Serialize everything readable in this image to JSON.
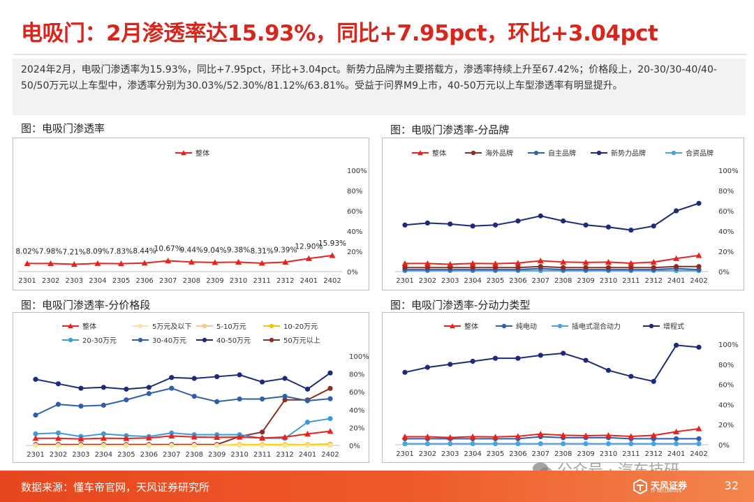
{
  "page": {
    "title": "电吸门：2月渗透率达15.93%，同比+7.95pct，环比+3.04pct",
    "summary": "2024年2月，电吸门渗透率为15.93%，同比+7.95pct，环比+3.04pct。新势力品牌为主要搭载方，渗透率持续上升至67.42%；价格段上，20-30/30-40/40-50/50万元以上车型中，渗透率分别为30.03%/52.30%/81.12%/63.81%。受益于问界M9上市，40-50万元以上车型渗透率有明显提升。",
    "source": "数据来源：懂车帝官网，天风证券研究所",
    "page_number": "32",
    "watermark": "公众号 · 汽车技研",
    "logo_text": "天风证券",
    "logo_sub": "TF SECURITIES"
  },
  "chart_titles": [
    "图：电吸门渗透率",
    "图：电吸门渗透率-分品牌",
    "图：电吸门渗透率-分价格段",
    "图：电吸门渗透率-分动力类型"
  ],
  "chart_data": [
    {
      "type": "line",
      "x": [
        "2301",
        "2302",
        "2303",
        "2304",
        "2305",
        "2306",
        "2307",
        "2308",
        "2309",
        "2310",
        "2311",
        "2312",
        "2401",
        "2402"
      ],
      "ylim": [
        0,
        100
      ],
      "yticks": [
        "0%",
        "20%",
        "40%",
        "60%",
        "80%",
        "100%"
      ],
      "legend_position": "top",
      "series": [
        {
          "name": "整体",
          "color": "#e8231d",
          "marker": "triangle",
          "values": [
            8.02,
            7.98,
            7.21,
            8.09,
            7.83,
            8.44,
            10.67,
            9.44,
            9.04,
            9.38,
            8.31,
            9.39,
            12.9,
            15.93
          ],
          "labels": [
            "8.02%",
            "7.98%",
            "7.21%",
            "8.09%",
            "7.83%",
            "8.44%",
            "10.67%",
            "9.44%",
            "9.04%",
            "9.38%",
            "8.31%",
            "9.39%",
            "12.90%",
            "15.93%"
          ]
        }
      ]
    },
    {
      "type": "line",
      "x": [
        "2301",
        "2302",
        "2303",
        "2304",
        "2305",
        "2306",
        "2307",
        "2308",
        "2309",
        "2310",
        "2311",
        "2312",
        "2401",
        "2402"
      ],
      "ylim": [
        0,
        100
      ],
      "yticks": [
        "0%",
        "20%",
        "40%",
        "60%",
        "80%",
        "100%"
      ],
      "legend_position": "top",
      "series": [
        {
          "name": "整体",
          "color": "#e8231d",
          "marker": "triangle",
          "values": [
            8.02,
            7.98,
            7.21,
            8.09,
            7.83,
            8.44,
            10.67,
            9.44,
            9.04,
            9.38,
            8.31,
            9.39,
            12.9,
            15.93
          ]
        },
        {
          "name": "海外品牌",
          "color": "#8b2e24",
          "marker": "circle",
          "values": [
            4,
            4,
            4,
            4,
            4,
            4,
            5,
            4,
            4,
            4,
            4,
            4,
            5,
            5
          ]
        },
        {
          "name": "自主品牌",
          "color": "#2f66b0",
          "marker": "circle",
          "values": [
            2,
            2,
            2,
            2,
            2,
            2,
            3,
            2,
            2,
            2,
            2,
            2,
            3,
            2
          ]
        },
        {
          "name": "新势力品牌",
          "color": "#1b2a7a",
          "marker": "circle",
          "values": [
            46,
            48,
            47,
            45,
            46,
            50,
            55,
            50,
            46,
            44,
            41,
            45,
            60,
            67.42
          ]
        },
        {
          "name": "合资品牌",
          "color": "#4ba3dd",
          "marker": "circle",
          "values": [
            1,
            1,
            1,
            1,
            1,
            1,
            1,
            1,
            1,
            1,
            1,
            1,
            1,
            1
          ]
        }
      ]
    },
    {
      "type": "line",
      "x": [
        "2301",
        "2302",
        "2303",
        "2304",
        "2305",
        "2306",
        "2307",
        "2308",
        "2309",
        "2310",
        "2311",
        "2312",
        "2401",
        "2402"
      ],
      "ylim": [
        0,
        100
      ],
      "yticks": [
        "0%",
        "20%",
        "40%",
        "60%",
        "80%",
        "100%"
      ],
      "legend_position": "top",
      "series": [
        {
          "name": "整体",
          "color": "#e8231d",
          "marker": "triangle",
          "values": [
            8.02,
            7.98,
            7.21,
            8.09,
            7.83,
            8.44,
            10.67,
            9.44,
            9.04,
            9.38,
            8.31,
            9.39,
            12.9,
            15.93
          ]
        },
        {
          "name": "5万元及以下",
          "color": "#fbe3a8",
          "marker": "circle",
          "values": [
            0,
            0,
            0,
            0,
            0,
            0,
            0,
            0,
            0,
            0,
            0,
            0,
            0,
            0
          ]
        },
        {
          "name": "5-10万元",
          "color": "#f6c98a",
          "marker": "circle",
          "values": [
            0,
            0,
            0,
            0,
            0,
            0,
            0,
            0,
            0,
            0,
            0,
            0,
            0,
            0
          ]
        },
        {
          "name": "10-20万元",
          "color": "#f5c400",
          "marker": "circle",
          "values": [
            0,
            0,
            0,
            0,
            0,
            0,
            0,
            0,
            0,
            1,
            1,
            1,
            1,
            1.5
          ]
        },
        {
          "name": "20-30万元",
          "color": "#3f9ad8",
          "marker": "circle",
          "values": [
            13,
            14,
            10,
            13,
            11,
            10,
            14,
            12,
            12,
            12,
            8,
            8,
            26,
            30.03
          ]
        },
        {
          "name": "30-40万元",
          "color": "#2f5fa8",
          "marker": "circle",
          "values": [
            34,
            46,
            44,
            45,
            51,
            58,
            64,
            55,
            49,
            52,
            52,
            55,
            50,
            52.3
          ]
        },
        {
          "name": "40-50万元",
          "color": "#1b2a7a",
          "marker": "circle",
          "values": [
            74,
            69,
            64,
            65,
            63,
            65,
            76,
            75,
            77,
            79,
            71,
            75,
            63,
            81.12
          ]
        },
        {
          "name": "50万元以上",
          "color": "#8b2e24",
          "marker": "circle",
          "values": [
            1,
            1,
            1,
            1,
            1,
            1,
            1,
            1,
            1,
            10,
            15,
            51,
            51,
            63.81
          ]
        }
      ]
    },
    {
      "type": "line",
      "x": [
        "2301",
        "2302",
        "2303",
        "2304",
        "2305",
        "2306",
        "2307",
        "2308",
        "2309",
        "2310",
        "2311",
        "2312",
        "2401",
        "2402"
      ],
      "ylim": [
        0,
        100
      ],
      "yticks": [
        "0%",
        "20%",
        "40%",
        "60%",
        "80%",
        "100%"
      ],
      "legend_position": "top",
      "series": [
        {
          "name": "整体",
          "color": "#e8231d",
          "marker": "triangle",
          "values": [
            8.02,
            7.98,
            7.21,
            8.09,
            7.83,
            8.44,
            10.67,
            9.44,
            9.04,
            9.38,
            8.31,
            9.39,
            12.9,
            15.93
          ]
        },
        {
          "name": "纯电动",
          "color": "#2f5fa8",
          "marker": "circle",
          "values": [
            6,
            6,
            6,
            6,
            6,
            6,
            8,
            7,
            7,
            7,
            6,
            6,
            6,
            6
          ]
        },
        {
          "name": "插电式混合动力",
          "color": "#4ba3dd",
          "marker": "circle",
          "values": [
            1,
            1,
            1,
            1,
            1,
            1,
            1,
            1,
            1,
            1,
            1,
            1,
            1,
            1
          ]
        },
        {
          "name": "增程式",
          "color": "#1b2a7a",
          "marker": "circle",
          "values": [
            72,
            77,
            80,
            83,
            86,
            86,
            89,
            91,
            84,
            74,
            68,
            63,
            99,
            97
          ]
        }
      ]
    }
  ]
}
